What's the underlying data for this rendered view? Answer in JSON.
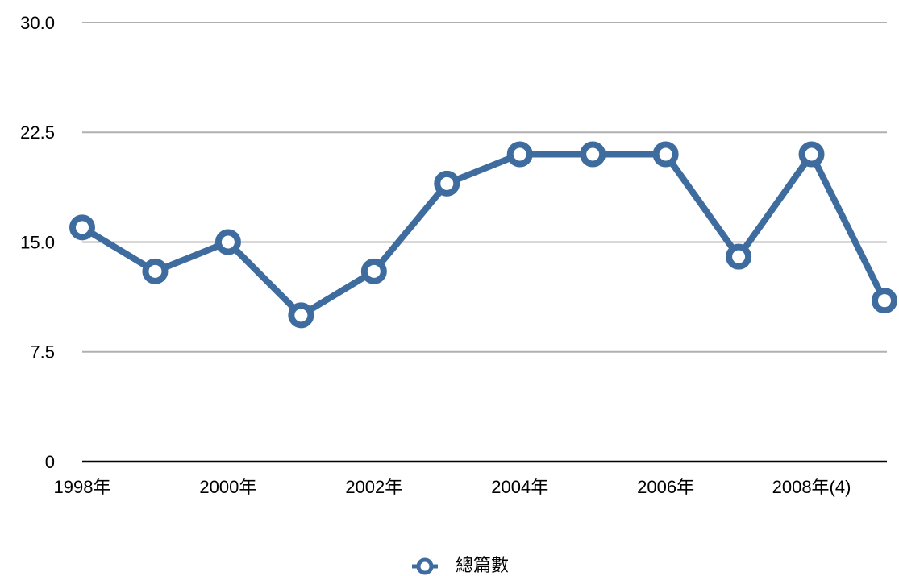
{
  "chart_data": {
    "type": "line",
    "categories": [
      "1998年",
      null,
      "2000年",
      null,
      "2002年",
      null,
      "2004年",
      null,
      "2006年",
      null,
      "2008年(4)",
      null
    ],
    "series": [
      {
        "name": "總篇數",
        "color": "#3f6c9e",
        "values": [
          16,
          13,
          15,
          10,
          13,
          19,
          21,
          21,
          21,
          14,
          21,
          11
        ]
      }
    ],
    "ylim": [
      0,
      30
    ],
    "yticks": [
      0,
      7.5,
      {
        "value": 15,
        "label": "15.0"
      },
      22.5,
      {
        "value": 30,
        "label": "30.0"
      }
    ],
    "grid": true,
    "legend": "bottom"
  }
}
